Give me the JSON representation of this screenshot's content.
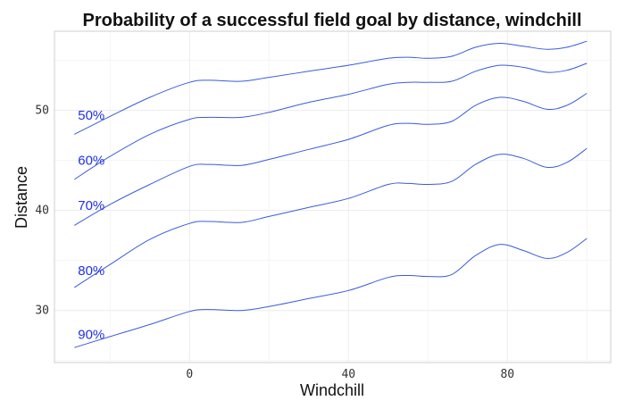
{
  "chart_data": {
    "type": "line",
    "title": "Probability of a successful field goal by distance, windchill",
    "xlabel": "Windchill",
    "ylabel": "Distance",
    "xlim": [
      -34,
      106
    ],
    "ylim": [
      24.8,
      57.9
    ],
    "x_ticks": [
      0,
      40,
      80
    ],
    "y_ticks": [
      30,
      40,
      50
    ],
    "grid": true,
    "line_color": "#3b5bdb",
    "label_color": "#1f2fe8",
    "label_x": -29,
    "x": [
      -29,
      -20,
      -10,
      0,
      5,
      13,
      20,
      30,
      40,
      50,
      55,
      60,
      66,
      72,
      78,
      84,
      90,
      95,
      100
    ],
    "series": [
      {
        "name": "50%",
        "label_y": 49.5,
        "values": [
          47.6,
          49.4,
          51.3,
          52.8,
          53.0,
          52.9,
          53.3,
          53.9,
          54.5,
          55.2,
          55.3,
          55.2,
          55.4,
          56.3,
          56.7,
          56.4,
          56.1,
          56.3,
          56.9
        ]
      },
      {
        "name": "60%",
        "label_y": 45.0,
        "values": [
          43.1,
          45.4,
          47.6,
          49.1,
          49.3,
          49.3,
          49.8,
          50.8,
          51.6,
          52.6,
          52.8,
          52.8,
          52.9,
          53.9,
          54.5,
          54.3,
          53.8,
          54.0,
          54.7
        ]
      },
      {
        "name": "70%",
        "label_y": 40.5,
        "values": [
          38.5,
          40.6,
          42.6,
          44.4,
          44.6,
          44.5,
          45.1,
          46.1,
          47.1,
          48.5,
          48.7,
          48.6,
          48.9,
          50.5,
          51.3,
          50.9,
          50.1,
          50.5,
          51.7
        ]
      },
      {
        "name": "80%",
        "label_y": 34.0,
        "values": [
          32.3,
          34.6,
          37.1,
          38.7,
          38.9,
          38.8,
          39.4,
          40.3,
          41.2,
          42.6,
          42.7,
          42.6,
          42.9,
          44.6,
          45.6,
          45.2,
          44.3,
          44.8,
          46.2
        ]
      },
      {
        "name": "90%",
        "label_y": 27.6,
        "values": [
          26.3,
          27.4,
          28.6,
          29.9,
          30.1,
          30.0,
          30.4,
          31.2,
          32.0,
          33.3,
          33.5,
          33.4,
          33.6,
          35.5,
          36.6,
          36.0,
          35.2,
          35.8,
          37.2
        ]
      }
    ]
  }
}
